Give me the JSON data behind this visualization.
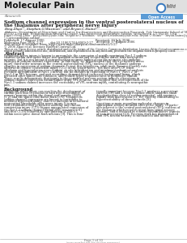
{
  "journal_title": "Molecular Pain",
  "section_label": "Research",
  "open_access_label": "Open Access",
  "paper_title_line1": "Sodium channel expression in the ventral posterolateral nucleus of",
  "paper_title_line2": "the thalamus after peripheral nerve injury",
  "authors": "Peng Zhao¹², Stephen G Waxman¹² and Bryan C Hains*¹²",
  "addr_line1": "Address: ¹Department of Neurology and Center for Neuroscience and Regeneration Research, Yale University School of Medicine, New Haven, CT",
  "addr_line2": "06510, USA and ²Rehabilitation Research Center, VA Connecticut Healthcare System, West Haven, CT, 06516, USA",
  "email_line1": "Email: Peng Zhao - peng.zhao@yale.edu; Stephen G Waxman - stephen.waxman@yale.edu; Bryan C Hains* - bryan.hains@yale.edu",
  "email_line2": "* Corresponding author",
  "pub_left1": "Published: 17 August 2006",
  "pub_left2": "Molecular Pain 2006, 2:27        doi:10.1186/1744-8069-2-27",
  "pub_left3": "This article is available from: http://www.molecularpain.com/content/2/1/27",
  "pub_right1": "Received: 19 July 2006",
  "pub_right2": "Accepted: 17 August 2006",
  "copyright": "© 2006 Zhao et al; licensee BioMed Central Ltd.",
  "license1": "This is an Open Access article distributed under the terms of the Creative Commons Attribution License (http://creativecommons.org/licenses/by/2.0),",
  "license2": "which permits unrestricted use, distribution, and reproduction in any medium, provided the original work is properly cited.",
  "abstract_title": "Abstract",
  "abstract_lines": [
    "Peripheral nerve injury is known to up-regulate the expression of rapidly-repriming Nav1.3 sodium",
    "channel within first-order dorsal root ganglion neurons and second-order dorsal horn nociceptive",
    "neurons, but it is not known if pain-processing neurons higher along the neuraxis also undergo",
    "changes in sodium channel expression. In this study, we hypothesized that after peripheral nerve",
    "injury, third-order neurons in the ventral posterolateral (VPL) nucleus of the thalamus undergo",
    "changes in expression of sodium channels. To test this hypothesis, adult male Sprague-Dawley rats",
    "underwent chronic constriction injury (CCI) of the sciatic nerve. Ten days after CCI, when",
    "allodynia and hyperalgesia were evident, in situ hybridization and immunocytochemical analysis",
    "revealed up-regulation of Nav1.3 mRNA, but no changes in expression of Nav1.1, Nav1.2, or",
    "Nav1.6 in VPL neurons, and unit recordings demonstrated increased background firing, which",
    "persisted after spinal cord contusion, and evoked hyper-responsiveness to peripheral stimuli.",
    "These results demonstrate that injury to the peripheral nervous system induces alterations in",
    "sodium channel expression within higher-order VPL neurons, and suggest that overexpression of the",
    "Nav1.3 sodium channel increases the excitability of VPL neurons injury, contributing to neuropathic",
    "pain."
  ],
  "background_title": "Background",
  "bg_col1_lines": [
    "Peripheral nerve injury can result in the development of",
    "chronic pain that is associated with hyperexcitability of",
    "sensory neurons within the dorsal root ganglia (DRG)",
    "[1,2] and the spinal cord dorsal horn [3-5]. Changes in",
    "sodium channel expression are known to contribute to",
    "neuronal hyperexcitability, and to reductions in behavioral",
    "nociceptive thresholds after nerve injury. It is now",
    "well-established that peripheral axotomy and chronic",
    "constriction injury (CCI) trigger upregulated expression of",
    "the Nav1.3 sodium channel within DRG neurons [6-8]",
    "and that CCI is followed by upregulation of Nav1.3",
    "within nociceptive dorsal horn neurons [9]. This is func-"
  ],
  "bg_col2_lines": [
    "tionally important because Nav1.3 produces a persistent",
    "current [10] and a ramp response which amplifies small",
    "depolarizations close to resting potential, and reprimes",
    "rapidly from inactivation [11,12], thereby contributing to",
    "hyperexcitability of these neurons [9].",
    "",
    "Questions remain regarding molecular changes in",
    "supraspinal sensory neurons after nerve injury. Of partic-",
    "ular interest is the ventral posterolateral (VPL) nucleus of",
    "the thalamus which receives input from spinal sensory",
    "neurons, and is involved in sensory-discriminative aspects",
    "of pain processing [13]. Previous work has demonstrated",
    "that VPL neuron activity to mechanical and thermal"
  ],
  "footer1": "Page 1 of 10",
  "footer2": "(page number not for citation purposes)",
  "bg_color": "#ffffff",
  "header_bg": "#e0e0e0",
  "oa_color": "#5b9bd5",
  "text_color": "#222222",
  "light_text": "#555555"
}
